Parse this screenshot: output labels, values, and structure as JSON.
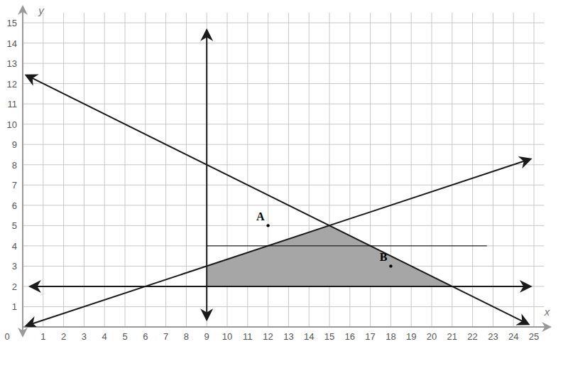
{
  "chart_data": {
    "type": "line",
    "x_label": "x",
    "y_label": "y",
    "xlim": [
      0,
      25.5
    ],
    "ylim": [
      0,
      15.5
    ],
    "xticks": [
      0,
      1,
      2,
      3,
      4,
      5,
      6,
      7,
      8,
      9,
      10,
      11,
      12,
      13,
      14,
      15,
      16,
      17,
      18,
      19,
      20,
      21,
      22,
      23,
      24,
      25
    ],
    "yticks": [
      1,
      2,
      3,
      4,
      5,
      6,
      7,
      8,
      9,
      10,
      11,
      12,
      13,
      14,
      15
    ],
    "grid": true,
    "series": [
      {
        "type": "area",
        "color": "#a6a6a6",
        "x": [
          9,
          9,
          15,
          21
        ],
        "values": [
          2,
          3,
          5,
          2
        ]
      },
      {
        "type": "line",
        "color": "#1a1a1a",
        "marker": "arrow",
        "line_style": "solid",
        "x": [
          9,
          9
        ],
        "values": [
          0.4,
          14.6
        ]
      },
      {
        "type": "line",
        "color": "#1a1a1a",
        "marker": "arrow",
        "line_style": "solid",
        "x": [
          0.4,
          24.8
        ],
        "values": [
          2,
          2
        ]
      },
      {
        "type": "line",
        "color": "#1a1a1a",
        "marker": "arrow",
        "line_style": "solid",
        "x": [
          0.2,
          24.7
        ],
        "values": [
          12.4,
          0.15
        ]
      },
      {
        "type": "line",
        "color": "#1a1a1a",
        "marker": "arrow",
        "line_style": "solid",
        "x": [
          0.2,
          24.8
        ],
        "values": [
          0.07,
          8.27
        ]
      },
      {
        "type": "line",
        "color": "#000000",
        "marker": "none",
        "line_style": "solid",
        "x": [
          9,
          22.7
        ],
        "values": [
          4,
          4
        ]
      },
      {
        "type": "scatter",
        "color": "#000000",
        "marker": "dot",
        "x": [
          12,
          18
        ],
        "values": [
          5,
          3
        ],
        "labels": [
          "A",
          "B"
        ]
      }
    ]
  }
}
